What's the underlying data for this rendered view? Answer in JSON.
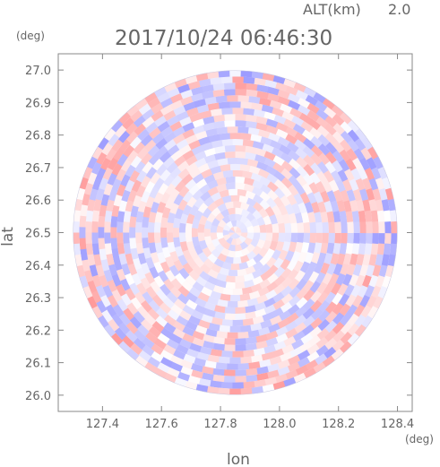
{
  "chart_data": {
    "type": "heatmap",
    "variant": "radar PPI (polar scan) on lon/lat grid",
    "header": {
      "altitude_label": "ALT(km)",
      "altitude_value": "2.0",
      "timestamp": "2017/10/24 06:46:30"
    },
    "xlabel": "lon",
    "ylabel": "lat",
    "x_unit": "(deg)",
    "y_unit": "(deg)",
    "xlim": [
      127.25,
      128.45
    ],
    "ylim": [
      25.95,
      27.05
    ],
    "x_ticks": [
      "127.4",
      "127.6",
      "127.8",
      "128.0",
      "128.2",
      "128.4"
    ],
    "y_ticks": [
      "26.0",
      "26.1",
      "26.2",
      "26.3",
      "26.4",
      "26.5",
      "26.6",
      "26.7",
      "26.8",
      "26.9",
      "27.0"
    ],
    "center": {
      "lon": 127.85,
      "lat": 26.5
    },
    "radius_deg": 0.55,
    "colormap": {
      "negative": "#8c8cff",
      "zero": "#ffffff",
      "positive": "#ff8c8c"
    },
    "grid": false,
    "legend": "none"
  }
}
